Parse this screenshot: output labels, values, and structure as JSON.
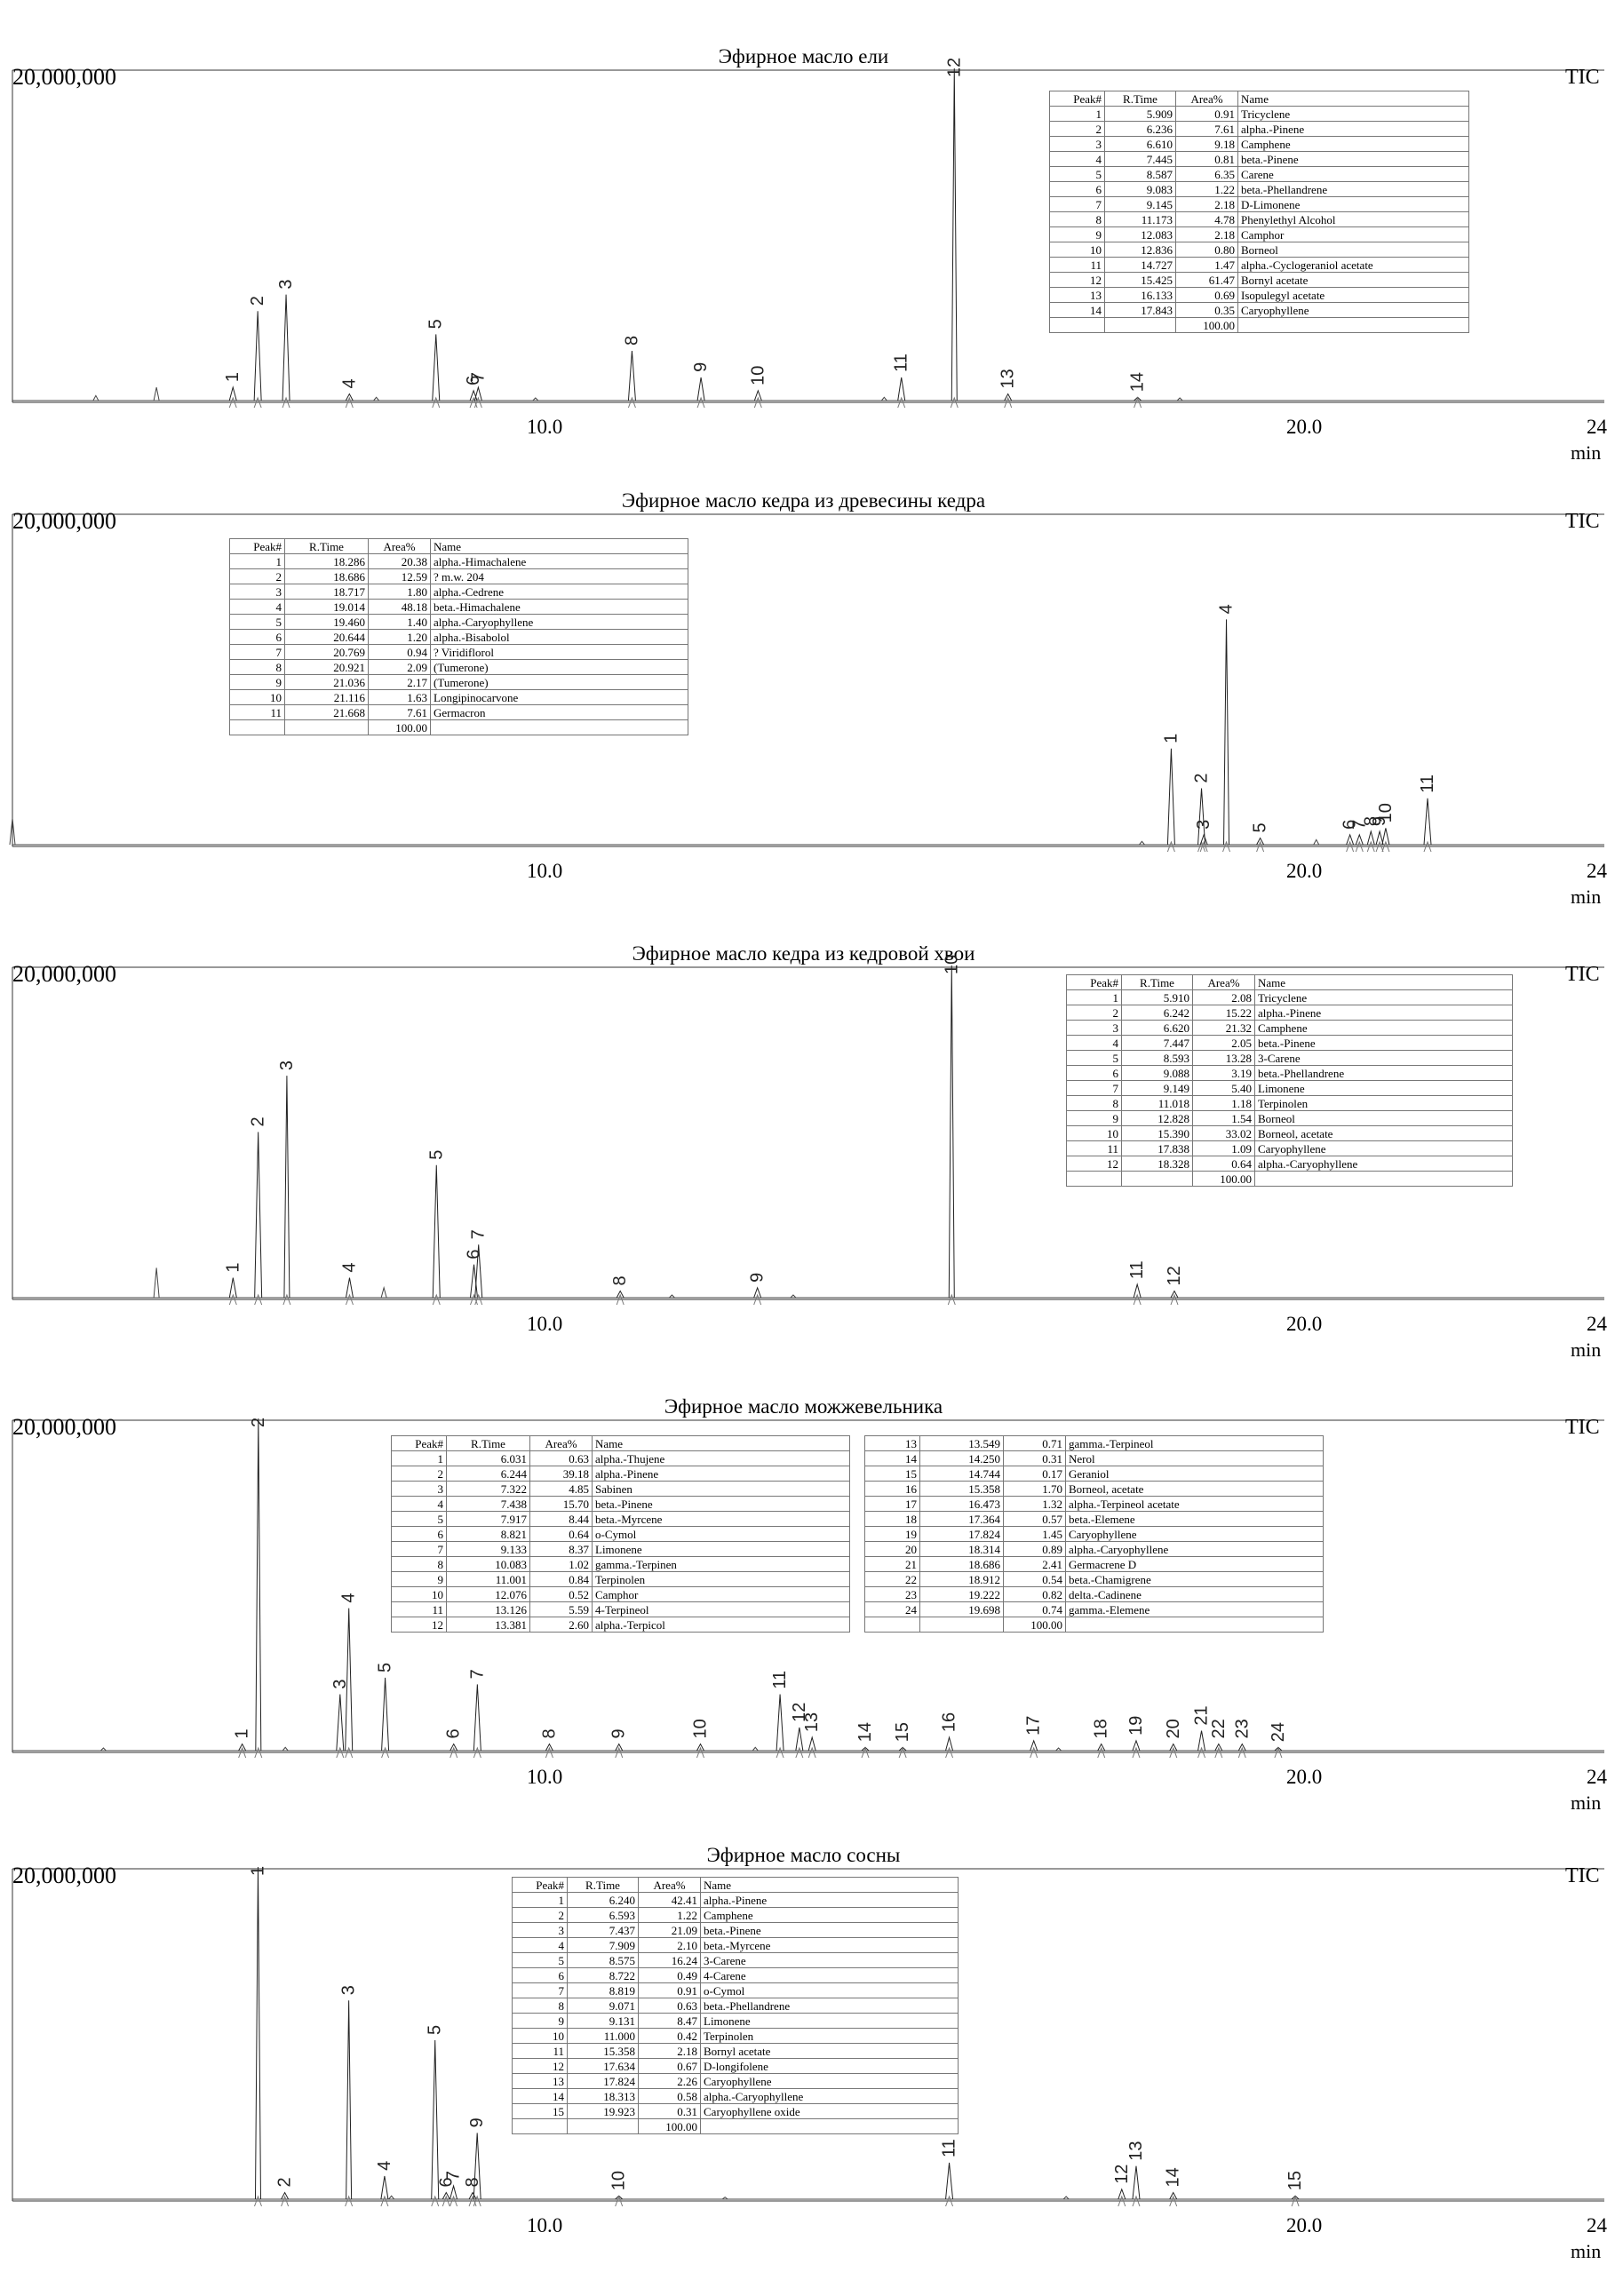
{
  "chart_data": [
    {
      "type": "line",
      "title": "Эфирное масло ели",
      "y_max_label": "20,000,000",
      "detector_label": "TIC",
      "xlim": [
        3,
        24
      ],
      "ylim": [
        0,
        20000000
      ],
      "x_ticks": [
        "10.0",
        "20.0",
        "24"
      ],
      "x_unit": "min",
      "table": {
        "header": [
          "Peak#",
          "R.Time",
          "Area%",
          "Name"
        ],
        "rows": [
          [
            "1",
            "5.909",
            "0.91",
            "Tricyclene"
          ],
          [
            "2",
            "6.236",
            "7.61",
            "alpha.-Pinene"
          ],
          [
            "3",
            "6.610",
            "9.18",
            "Camphene"
          ],
          [
            "4",
            "7.445",
            "0.81",
            "beta.-Pinene"
          ],
          [
            "5",
            "8.587",
            "6.35",
            "Carene"
          ],
          [
            "6",
            "9.083",
            "1.22",
            "beta.-Phellandrene"
          ],
          [
            "7",
            "9.145",
            "2.18",
            "D-Limonene"
          ],
          [
            "8",
            "11.173",
            "4.78",
            "Phenylethyl Alcohol"
          ],
          [
            "9",
            "12.083",
            "2.18",
            "Camphor"
          ],
          [
            "10",
            "12.836",
            "0.80",
            "Borneol"
          ],
          [
            "11",
            "14.727",
            "1.47",
            "alpha.-Cyclogeraniol acetate"
          ],
          [
            "12",
            "15.425",
            "61.47",
            "Bornyl acetate"
          ],
          [
            "13",
            "16.133",
            "0.69",
            "Isopulegyl acetate"
          ],
          [
            "14",
            "17.843",
            "0.35",
            "Caryophyllene"
          ]
        ],
        "total": "100.00"
      },
      "peaks": [
        {
          "label": "1",
          "x": 5.909,
          "h": 0.04
        },
        {
          "label": "2",
          "x": 6.236,
          "h": 0.27
        },
        {
          "label": "3",
          "x": 6.61,
          "h": 0.32
        },
        {
          "label": "4",
          "x": 7.445,
          "h": 0.02
        },
        {
          "label": "5",
          "x": 8.587,
          "h": 0.2
        },
        {
          "label": "6",
          "x": 9.083,
          "h": 0.03
        },
        {
          "label": "7",
          "x": 9.145,
          "h": 0.04
        },
        {
          "label": "8",
          "x": 11.173,
          "h": 0.15
        },
        {
          "label": "9",
          "x": 12.083,
          "h": 0.07
        },
        {
          "label": "10",
          "x": 12.836,
          "h": 0.03
        },
        {
          "label": "11",
          "x": 14.727,
          "h": 0.07
        },
        {
          "label": "12",
          "x": 15.425,
          "h": 1.05
        },
        {
          "label": "13",
          "x": 16.133,
          "h": 0.02
        },
        {
          "label": "14",
          "x": 17.843,
          "h": 0.01
        }
      ],
      "minor_peaks": [
        {
          "x": 4.1,
          "h": 0.015
        },
        {
          "x": 4.9,
          "h": 0.04
        },
        {
          "x": 7.8,
          "h": 0.01
        },
        {
          "x": 9.9,
          "h": 0.008
        },
        {
          "x": 14.5,
          "h": 0.01
        },
        {
          "x": 18.4,
          "h": 0.008
        }
      ]
    },
    {
      "type": "line",
      "title": "Эфирное масло кедра из древесины кедра",
      "y_max_label": "20,000,000",
      "detector_label": "TIC",
      "xlim": [
        3,
        24
      ],
      "ylim": [
        0,
        20000000
      ],
      "x_ticks": [
        "10.0",
        "20.0",
        "24"
      ],
      "x_unit": "min",
      "table": {
        "header": [
          "Peak#",
          "R.Time",
          "Area%",
          "Name"
        ],
        "rows": [
          [
            "1",
            "18.286",
            "20.38",
            "alpha.-Himachalene"
          ],
          [
            "2",
            "18.686",
            "12.59",
            "? m.w. 204"
          ],
          [
            "3",
            "18.717",
            "1.80",
            "alpha.-Cedrene"
          ],
          [
            "4",
            "19.014",
            "48.18",
            "beta.-Himachalene"
          ],
          [
            "5",
            "19.460",
            "1.40",
            "alpha.-Caryophyllene"
          ],
          [
            "6",
            "20.644",
            "1.20",
            "alpha.-Bisabolol"
          ],
          [
            "7",
            "20.769",
            "0.94",
            "? Viridiflorol"
          ],
          [
            "8",
            "20.921",
            "2.09",
            "(Tumerone)"
          ],
          [
            "9",
            "21.036",
            "2.17",
            "(Tumerone)"
          ],
          [
            "10",
            "21.116",
            "1.63",
            "Longipinocarvone"
          ],
          [
            "11",
            "21.668",
            "7.61",
            "Germacron"
          ]
        ],
        "total": "100.00"
      },
      "peaks": [
        {
          "label": "1",
          "x": 18.286,
          "h": 0.29
        },
        {
          "label": "2",
          "x": 18.686,
          "h": 0.17
        },
        {
          "label": "3",
          "x": 18.717,
          "h": 0.03
        },
        {
          "label": "4",
          "x": 19.014,
          "h": 0.68
        },
        {
          "label": "5",
          "x": 19.46,
          "h": 0.02
        },
        {
          "label": "6",
          "x": 20.644,
          "h": 0.03
        },
        {
          "label": "7",
          "x": 20.769,
          "h": 0.03
        },
        {
          "label": "8",
          "x": 20.921,
          "h": 0.04
        },
        {
          "label": "9",
          "x": 21.036,
          "h": 0.04
        },
        {
          "label": "10",
          "x": 21.116,
          "h": 0.05
        },
        {
          "label": "11",
          "x": 21.668,
          "h": 0.14
        }
      ],
      "minor_peaks": [
        {
          "x": 3.0,
          "h": 0.08
        },
        {
          "x": 17.9,
          "h": 0.01
        },
        {
          "x": 20.2,
          "h": 0.015
        }
      ]
    },
    {
      "type": "line",
      "title": "Эфирное масло кедра из кедровой хвои",
      "y_max_label": "20,000,000",
      "detector_label": "TIC",
      "xlim": [
        3,
        24
      ],
      "ylim": [
        0,
        20000000
      ],
      "x_ticks": [
        "10.0",
        "20.0",
        "24"
      ],
      "x_unit": "min",
      "table": {
        "header": [
          "Peak#",
          "R.Time",
          "Area%",
          "Name"
        ],
        "rows": [
          [
            "1",
            "5.910",
            "2.08",
            "Tricyclene"
          ],
          [
            "2",
            "6.242",
            "15.22",
            "alpha.-Pinene"
          ],
          [
            "3",
            "6.620",
            "21.32",
            "Camphene"
          ],
          [
            "4",
            "7.447",
            "2.05",
            "beta.-Pinene"
          ],
          [
            "5",
            "8.593",
            "13.28",
            "3-Carene"
          ],
          [
            "6",
            "9.088",
            "3.19",
            "beta.-Phellandrene"
          ],
          [
            "7",
            "9.149",
            "5.40",
            "Limonene"
          ],
          [
            "8",
            "11.018",
            "1.18",
            "Terpinolen"
          ],
          [
            "9",
            "12.828",
            "1.54",
            "Borneol"
          ],
          [
            "10",
            "15.390",
            "33.02",
            "Borneol, acetate"
          ],
          [
            "11",
            "17.838",
            "1.09",
            "Caryophyllene"
          ],
          [
            "12",
            "18.328",
            "0.64",
            "alpha.-Caryophyllene"
          ]
        ],
        "total": "100.00"
      },
      "peaks": [
        {
          "label": "1",
          "x": 5.91,
          "h": 0.06
        },
        {
          "label": "2",
          "x": 6.242,
          "h": 0.5
        },
        {
          "label": "3",
          "x": 6.62,
          "h": 0.67
        },
        {
          "label": "4",
          "x": 7.447,
          "h": 0.06
        },
        {
          "label": "5",
          "x": 8.593,
          "h": 0.4
        },
        {
          "label": "6",
          "x": 9.088,
          "h": 0.1
        },
        {
          "label": "7",
          "x": 9.149,
          "h": 0.16
        },
        {
          "label": "8",
          "x": 11.018,
          "h": 0.02
        },
        {
          "label": "9",
          "x": 12.828,
          "h": 0.03
        },
        {
          "label": "10",
          "x": 15.39,
          "h": 1.05
        },
        {
          "label": "11",
          "x": 17.838,
          "h": 0.04
        },
        {
          "label": "12",
          "x": 18.328,
          "h": 0.02
        }
      ],
      "minor_peaks": [
        {
          "x": 4.9,
          "h": 0.09
        },
        {
          "x": 7.9,
          "h": 0.03
        },
        {
          "x": 11.7,
          "h": 0.008
        },
        {
          "x": 13.3,
          "h": 0.008
        }
      ]
    },
    {
      "type": "line",
      "title": "Эфирное масло можжевельника",
      "y_max_label": "20,000,000",
      "detector_label": "TIC",
      "xlim": [
        3,
        24
      ],
      "ylim": [
        0,
        20000000
      ],
      "x_ticks": [
        "10.0",
        "20.0",
        "24"
      ],
      "x_unit": "min",
      "table": {
        "header": [
          "Peak#",
          "R.Time",
          "Area%",
          "Name"
        ],
        "rows": [
          [
            "1",
            "6.031",
            "0.63",
            "alpha.-Thujene"
          ],
          [
            "2",
            "6.244",
            "39.18",
            "alpha.-Pinene"
          ],
          [
            "3",
            "7.322",
            "4.85",
            "Sabinen"
          ],
          [
            "4",
            "7.438",
            "15.70",
            "beta.-Pinene"
          ],
          [
            "5",
            "7.917",
            "8.44",
            "beta.-Myrcene"
          ],
          [
            "6",
            "8.821",
            "0.64",
            "o-Cymol"
          ],
          [
            "7",
            "9.133",
            "8.37",
            "Limonene"
          ],
          [
            "8",
            "10.083",
            "1.02",
            "gamma.-Terpinen"
          ],
          [
            "9",
            "11.001",
            "0.84",
            "Terpinolen"
          ],
          [
            "10",
            "12.076",
            "0.52",
            "Camphor"
          ],
          [
            "11",
            "13.126",
            "5.59",
            "4-Terpineol"
          ],
          [
            "12",
            "13.381",
            "2.60",
            "alpha.-Terpicol"
          ]
        ],
        "table2_rows": [
          [
            "13",
            "13.549",
            "0.71",
            "gamma.-Terpineol"
          ],
          [
            "14",
            "14.250",
            "0.31",
            "Nerol"
          ],
          [
            "15",
            "14.744",
            "0.17",
            "Geraniol"
          ],
          [
            "16",
            "15.358",
            "1.70",
            "Borneol, acetate"
          ],
          [
            "17",
            "16.473",
            "1.32",
            "alpha.-Terpineol acetate"
          ],
          [
            "18",
            "17.364",
            "0.57",
            "beta.-Elemene"
          ],
          [
            "19",
            "17.824",
            "1.45",
            "Caryophyllene"
          ],
          [
            "20",
            "18.314",
            "0.89",
            "alpha.-Caryophyllene"
          ],
          [
            "21",
            "18.686",
            "2.41",
            "Germacrene D"
          ],
          [
            "22",
            "18.912",
            "0.54",
            "beta.-Chamigrene"
          ],
          [
            "23",
            "19.222",
            "0.82",
            "delta.-Cadinene"
          ],
          [
            "24",
            "19.698",
            "0.74",
            "gamma.-Elemene"
          ]
        ],
        "total": "100.00"
      },
      "peaks": [
        {
          "label": "1",
          "x": 6.031,
          "h": 0.02
        },
        {
          "label": "2",
          "x": 6.244,
          "h": 1.05
        },
        {
          "label": "3",
          "x": 7.322,
          "h": 0.17
        },
        {
          "label": "4",
          "x": 7.438,
          "h": 0.43
        },
        {
          "label": "5",
          "x": 7.917,
          "h": 0.22
        },
        {
          "label": "6",
          "x": 8.821,
          "h": 0.02
        },
        {
          "label": "7",
          "x": 9.133,
          "h": 0.2
        },
        {
          "label": "8",
          "x": 10.083,
          "h": 0.02
        },
        {
          "label": "9",
          "x": 11.001,
          "h": 0.02
        },
        {
          "label": "10",
          "x": 12.076,
          "h": 0.02
        },
        {
          "label": "11",
          "x": 13.126,
          "h": 0.17
        },
        {
          "label": "12",
          "x": 13.381,
          "h": 0.07
        },
        {
          "label": "13",
          "x": 13.549,
          "h": 0.04
        },
        {
          "label": "14",
          "x": 14.25,
          "h": 0.01
        },
        {
          "label": "15",
          "x": 14.744,
          "h": 0.01
        },
        {
          "label": "16",
          "x": 15.358,
          "h": 0.04
        },
        {
          "label": "17",
          "x": 16.473,
          "h": 0.03
        },
        {
          "label": "18",
          "x": 17.364,
          "h": 0.02
        },
        {
          "label": "19",
          "x": 17.824,
          "h": 0.03
        },
        {
          "label": "20",
          "x": 18.314,
          "h": 0.02
        },
        {
          "label": "21",
          "x": 18.686,
          "h": 0.06
        },
        {
          "label": "22",
          "x": 18.912,
          "h": 0.02
        },
        {
          "label": "23",
          "x": 19.222,
          "h": 0.02
        },
        {
          "label": "24",
          "x": 19.698,
          "h": 0.01
        }
      ],
      "minor_peaks": [
        {
          "x": 4.2,
          "h": 0.008
        },
        {
          "x": 6.6,
          "h": 0.01
        },
        {
          "x": 12.8,
          "h": 0.01
        },
        {
          "x": 16.8,
          "h": 0.008
        }
      ]
    },
    {
      "type": "line",
      "title": "Эфирное масло сосны",
      "y_max_label": "20,000,000",
      "detector_label": "TIC",
      "xlim": [
        3,
        24
      ],
      "ylim": [
        0,
        20000000
      ],
      "x_ticks": [
        "10.0",
        "20.0",
        "24"
      ],
      "x_unit": "min",
      "table": {
        "header": [
          "Peak#",
          "R.Time",
          "Area%",
          "Name"
        ],
        "rows": [
          [
            "1",
            "6.240",
            "42.41",
            "alpha.-Pinene"
          ],
          [
            "2",
            "6.593",
            "1.22",
            "Camphene"
          ],
          [
            "3",
            "7.437",
            "21.09",
            "beta.-Pinene"
          ],
          [
            "4",
            "7.909",
            "2.10",
            "beta.-Myrcene"
          ],
          [
            "5",
            "8.575",
            "16.24",
            "3-Carene"
          ],
          [
            "6",
            "8.722",
            "0.49",
            "4-Carene"
          ],
          [
            "7",
            "8.819",
            "0.91",
            "o-Cymol"
          ],
          [
            "8",
            "9.071",
            "0.63",
            "beta.-Phellandrene"
          ],
          [
            "9",
            "9.131",
            "8.47",
            "Limonene"
          ],
          [
            "10",
            "11.000",
            "0.42",
            "Terpinolen"
          ],
          [
            "11",
            "15.358",
            "2.18",
            "Bornyl acetate"
          ],
          [
            "12",
            "17.634",
            "0.67",
            "D-longifolene"
          ],
          [
            "13",
            "17.824",
            "2.26",
            "Caryophyllene"
          ],
          [
            "14",
            "18.313",
            "0.58",
            "alpha.-Caryophyllene"
          ],
          [
            "15",
            "19.923",
            "0.31",
            "Caryophyllene oxide"
          ]
        ],
        "total": "100.00"
      },
      "peaks": [
        {
          "label": "1",
          "x": 6.24,
          "h": 1.05
        },
        {
          "label": "2",
          "x": 6.593,
          "h": 0.02
        },
        {
          "label": "3",
          "x": 7.437,
          "h": 0.6
        },
        {
          "label": "4",
          "x": 7.909,
          "h": 0.07
        },
        {
          "label": "5",
          "x": 8.575,
          "h": 0.48
        },
        {
          "label": "6",
          "x": 8.722,
          "h": 0.02
        },
        {
          "label": "7",
          "x": 8.819,
          "h": 0.04
        },
        {
          "label": "8",
          "x": 9.071,
          "h": 0.02
        },
        {
          "label": "9",
          "x": 9.131,
          "h": 0.2
        },
        {
          "label": "10",
          "x": 11.0,
          "h": 0.01
        },
        {
          "label": "11",
          "x": 15.358,
          "h": 0.11
        },
        {
          "label": "12",
          "x": 17.634,
          "h": 0.03
        },
        {
          "label": "13",
          "x": 17.824,
          "h": 0.1
        },
        {
          "label": "14",
          "x": 18.313,
          "h": 0.02
        },
        {
          "label": "15",
          "x": 19.923,
          "h": 0.01
        }
      ],
      "minor_peaks": [
        {
          "x": 8.0,
          "h": 0.01
        },
        {
          "x": 12.4,
          "h": 0.006
        },
        {
          "x": 16.9,
          "h": 0.008
        }
      ]
    }
  ]
}
